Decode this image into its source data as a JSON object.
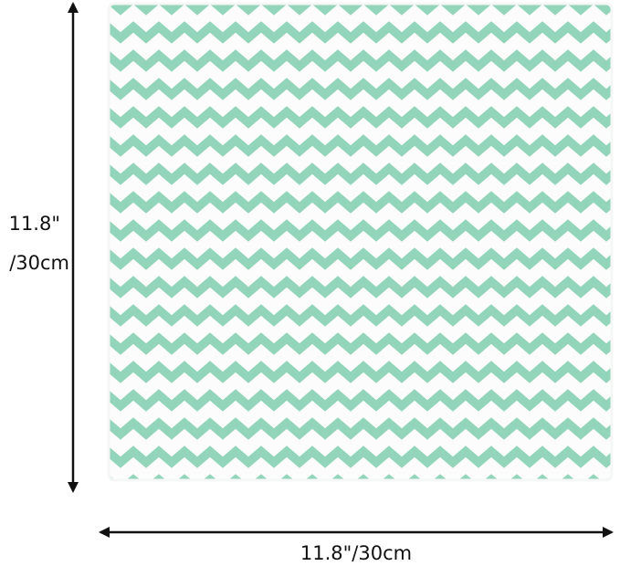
{
  "dimensions": {
    "height": {
      "lines": [
        "11.8\"",
        "/30cm"
      ]
    },
    "width": {
      "label": "11.8\"/30cm"
    }
  }
}
